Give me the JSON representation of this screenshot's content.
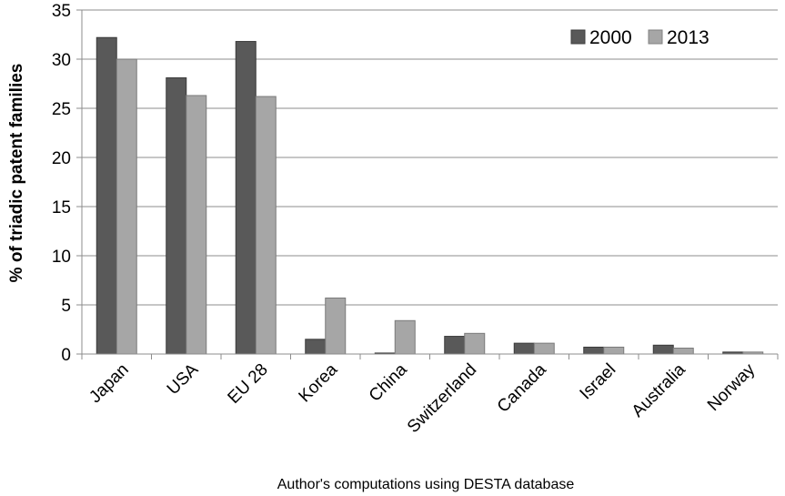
{
  "chart_data": {
    "type": "bar",
    "title": "",
    "xlabel": "",
    "ylabel": "% of triadic patent families",
    "source_note": "Author's computations using DESTA database",
    "categories": [
      "Japan",
      "USA",
      "EU 28",
      "Korea",
      "China",
      "Switzerland",
      "Canada",
      "Israel",
      "Australia",
      "Norway"
    ],
    "series": [
      {
        "name": "2000",
        "color": "#595959",
        "values": [
          32.2,
          28.1,
          31.8,
          1.5,
          0.1,
          1.8,
          1.1,
          0.7,
          0.9,
          0.2
        ]
      },
      {
        "name": "2013",
        "color": "#a6a6a6",
        "values": [
          30.0,
          26.3,
          26.2,
          5.7,
          3.4,
          2.1,
          1.1,
          0.7,
          0.6,
          0.2
        ]
      }
    ],
    "ylim": [
      0,
      35
    ],
    "yticks": [
      0,
      5,
      10,
      15,
      20,
      25,
      30,
      35
    ],
    "grid": true,
    "legend_position": "top-right"
  }
}
